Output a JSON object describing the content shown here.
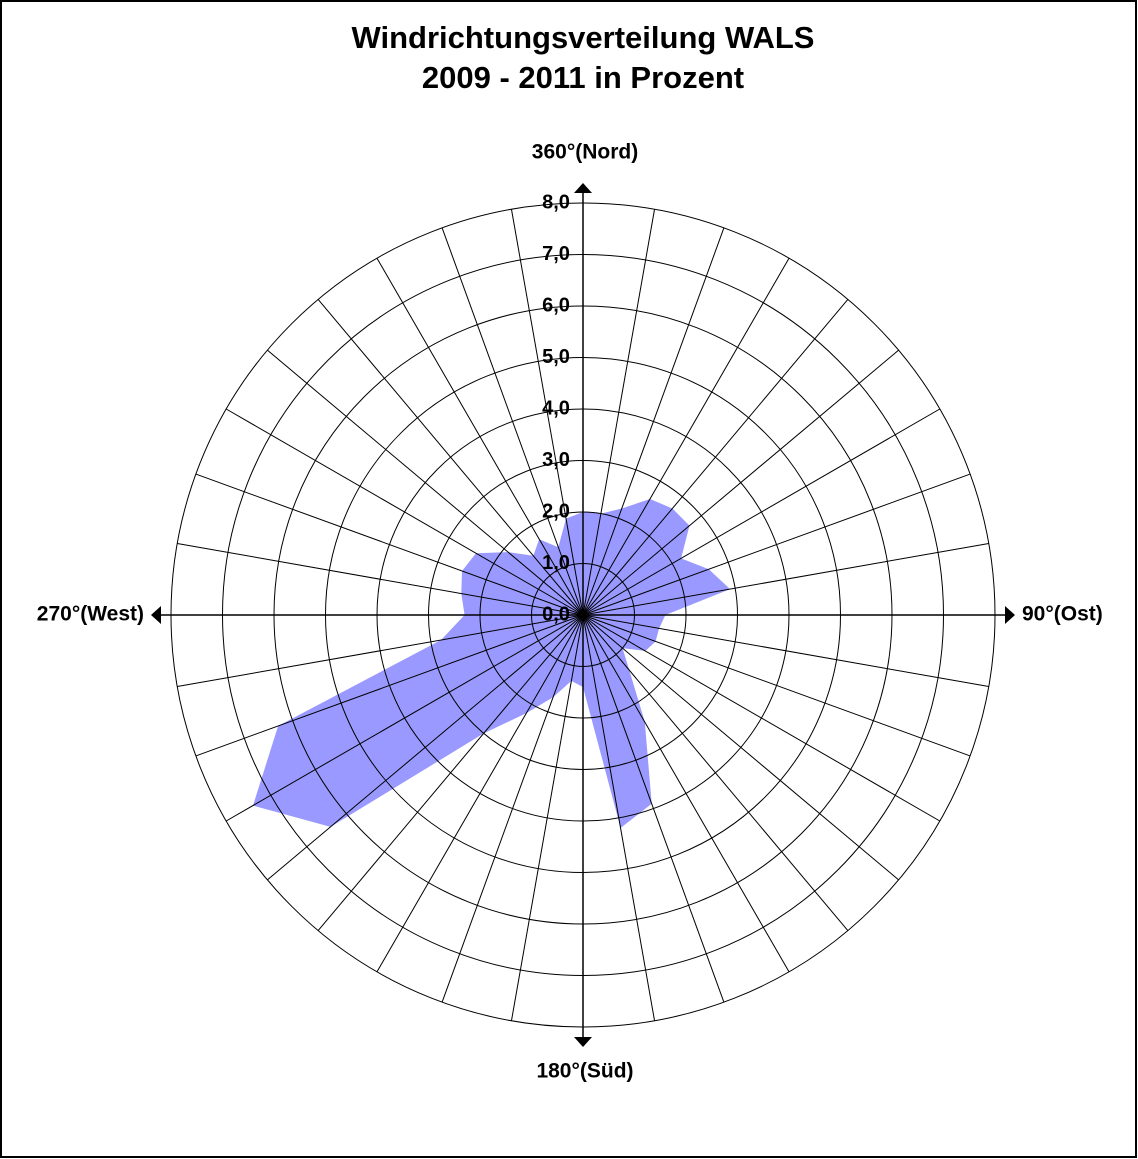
{
  "chart_data": {
    "type": "radar",
    "title": "Windrichtungsverteilung  WALS",
    "subtitle": "2009 - 2011 in Prozent",
    "x": [
      10,
      20,
      30,
      40,
      50,
      60,
      70,
      80,
      90,
      100,
      110,
      120,
      130,
      140,
      150,
      160,
      170,
      180,
      190,
      200,
      210,
      220,
      230,
      240,
      250,
      260,
      270,
      280,
      290,
      300,
      310,
      320,
      330,
      340,
      350,
      360
    ],
    "values": [
      2.0,
      2.2,
      2.6,
      2.7,
      2.7,
      2.2,
      2.6,
      2.9,
      1.6,
      1.5,
      1.5,
      1.4,
      1.0,
      1.4,
      2.4,
      3.9,
      4.2,
      1.4,
      1.3,
      1.7,
      2.2,
      3.0,
      6.4,
      7.4,
      6.3,
      2.8,
      2.3,
      2.4,
      2.5,
      2.4,
      1.9,
      1.5,
      1.7,
      1.4,
      1.9,
      2.0
    ],
    "color": "#9999ff",
    "ylim": [
      0,
      8
    ],
    "yticks": [
      {
        "value": 0,
        "label": "0,0"
      },
      {
        "value": 1,
        "label": "1,0"
      },
      {
        "value": 2,
        "label": "2,0"
      },
      {
        "value": 3,
        "label": "3,0"
      },
      {
        "value": 4,
        "label": "4,0"
      },
      {
        "value": 5,
        "label": "5,0"
      },
      {
        "value": 6,
        "label": "6,0"
      },
      {
        "value": 7,
        "label": "7,0"
      },
      {
        "value": 8,
        "label": "8,0"
      }
    ],
    "direction_labels": [
      {
        "value": 360,
        "label": "360°(Nord)"
      },
      {
        "value": 90,
        "label": "90°(Ost)"
      },
      {
        "value": 180,
        "label": "180°(Süd)"
      },
      {
        "value": 270,
        "label": "270°(West)"
      }
    ],
    "grid": true
  }
}
